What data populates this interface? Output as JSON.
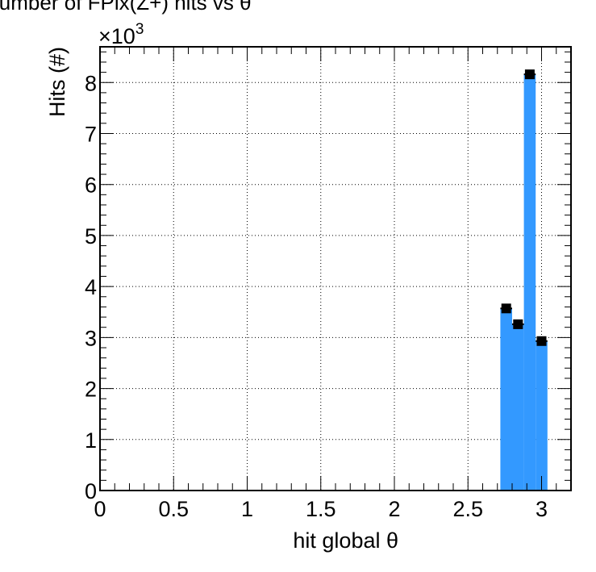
{
  "chart_data": {
    "type": "bar",
    "title": "Number of FPix(Z+) hits vs θ",
    "xlabel": "hit global θ",
    "ylabel": "Hits (#)",
    "y_multiplier": "×10",
    "y_multiplier_exp": "3",
    "xlim": [
      0,
      3.2
    ],
    "ylim": [
      0,
      8.7
    ],
    "grid": true,
    "bar_color": "#3399ff",
    "marker_color": "#000000",
    "xticks": [
      0,
      0.5,
      1,
      1.5,
      2,
      2.5,
      3
    ],
    "xtick_labels": [
      "0",
      "0.5",
      "1",
      "1.5",
      "2",
      "2.5",
      "3"
    ],
    "yticks": [
      0,
      1,
      2,
      3,
      4,
      5,
      6,
      7,
      8
    ],
    "ytick_labels": [
      "0",
      "1",
      "2",
      "3",
      "4",
      "5",
      "6",
      "7",
      "8"
    ],
    "bins": [
      {
        "x_low": 2.72,
        "x_high": 2.8,
        "value": 3.57
      },
      {
        "x_low": 2.8,
        "x_high": 2.88,
        "value": 3.26
      },
      {
        "x_low": 2.88,
        "x_high": 2.96,
        "value": 8.16
      },
      {
        "x_low": 2.96,
        "x_high": 3.04,
        "value": 2.93
      }
    ]
  }
}
